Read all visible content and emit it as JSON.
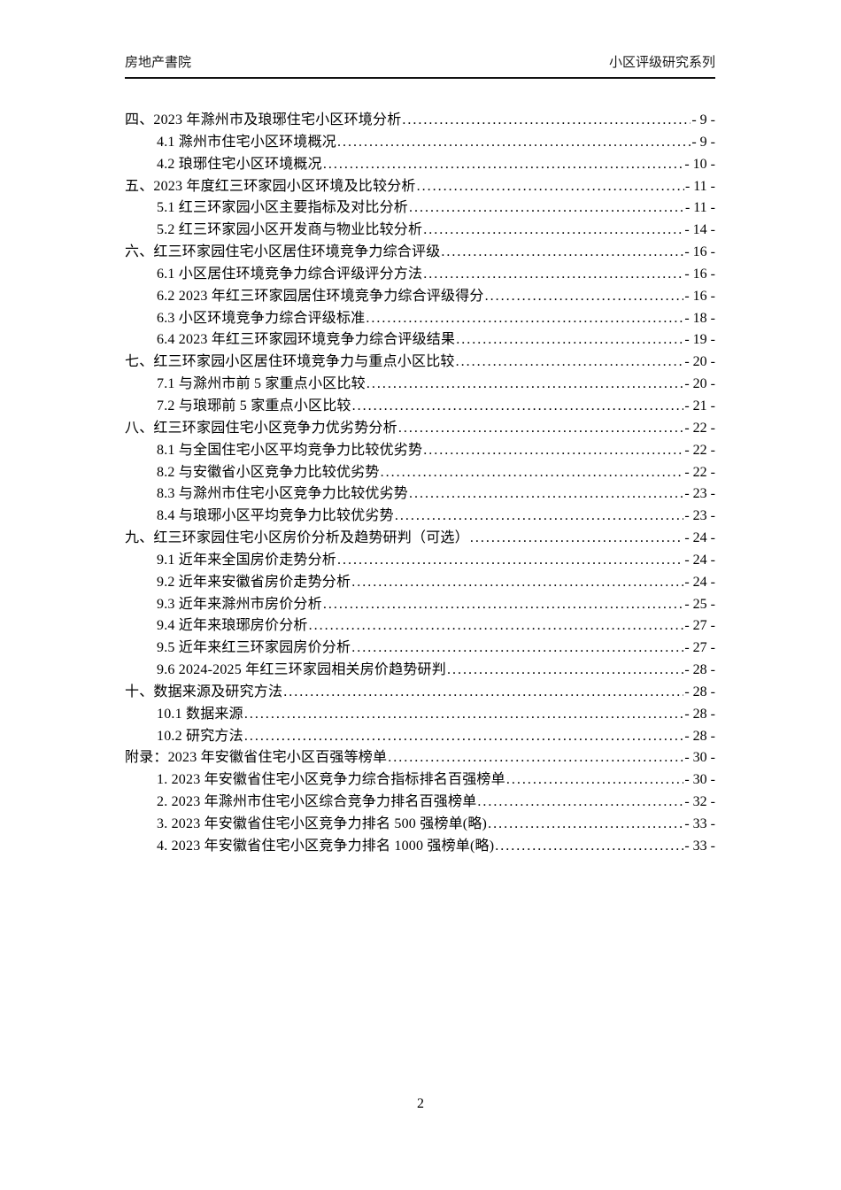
{
  "header": {
    "left_title": "房地产書院",
    "right_title": "小区评级研究系列"
  },
  "footer": {
    "page_number": "2"
  },
  "toc": {
    "entries": [
      {
        "level": 0,
        "title": "四、2023 年滁州市及琅琊住宅小区环境分析",
        "page": "- 9 -"
      },
      {
        "level": 1,
        "title": "4.1 滁州市住宅小区环境概况",
        "page": "- 9 -"
      },
      {
        "level": 1,
        "title": "4.2 琅琊住宅小区环境概况",
        "page": "- 10 -"
      },
      {
        "level": 0,
        "title": "五、2023 年度红三环家园小区环境及比较分析",
        "page": "- 11 -"
      },
      {
        "level": 1,
        "title": "5.1 红三环家园小区主要指标及对比分析",
        "page": "- 11 -"
      },
      {
        "level": 1,
        "title": "5.2 红三环家园小区开发商与物业比较分析",
        "page": "- 14 -"
      },
      {
        "level": 0,
        "title": "六、红三环家园住宅小区居住环境竞争力综合评级",
        "page": "- 16 -"
      },
      {
        "level": 1,
        "title": "6.1 小区居住环境竞争力综合评级评分方法",
        "page": "- 16 -"
      },
      {
        "level": 1,
        "title": "6.2 2023 年红三环家园居住环境竞争力综合评级得分",
        "page": "- 16 -"
      },
      {
        "level": 1,
        "title": "6.3 小区环境竞争力综合评级标准",
        "page": "- 18 -"
      },
      {
        "level": 1,
        "title": "6.4 2023 年红三环家园环境竞争力综合评级结果",
        "page": "- 19 -"
      },
      {
        "level": 0,
        "title": "七、红三环家园小区居住环境竞争力与重点小区比较",
        "page": "- 20 -"
      },
      {
        "level": 1,
        "title": "7.1 与滁州市前 5 家重点小区比较",
        "page": "- 20 -"
      },
      {
        "level": 1,
        "title": "7.2 与琅琊前 5 家重点小区比较",
        "page": "- 21 -"
      },
      {
        "level": 0,
        "title": "八、红三环家园住宅小区竞争力优劣势分析",
        "page": "- 22 -"
      },
      {
        "level": 1,
        "title": "8.1 与全国住宅小区平均竞争力比较优劣势",
        "page": "- 22 -"
      },
      {
        "level": 1,
        "title": "8.2 与安徽省小区竞争力比较优劣势",
        "page": "- 22 -"
      },
      {
        "level": 1,
        "title": "8.3 与滁州市住宅小区竞争力比较优劣势",
        "page": "- 23 -"
      },
      {
        "level": 1,
        "title": "8.4 与琅琊小区平均竞争力比较优劣势",
        "page": "- 23 -"
      },
      {
        "level": 0,
        "title": "九、红三环家园住宅小区房价分析及趋势研判（可选） ",
        "page": "- 24 -"
      },
      {
        "level": 1,
        "title": "9.1 近年来全国房价走势分析",
        "page": "- 24 -"
      },
      {
        "level": 1,
        "title": "9.2 近年来安徽省房价走势分析",
        "page": "- 24 -"
      },
      {
        "level": 1,
        "title": "9.3 近年来滁州市房价分析",
        "page": "- 25 -"
      },
      {
        "level": 1,
        "title": "9.4 近年来琅琊房价分析",
        "page": "- 27 -"
      },
      {
        "level": 1,
        "title": "9.5 近年来红三环家园房价分析",
        "page": "- 27 -"
      },
      {
        "level": 1,
        "title": "9.6 2024-2025 年红三环家园相关房价趋势研判",
        "page": "- 28 -"
      },
      {
        "level": 0,
        "title": "十、数据来源及研究方法",
        "page": "- 28 -"
      },
      {
        "level": 1,
        "title": "10.1 数据来源",
        "page": "- 28 -"
      },
      {
        "level": 1,
        "title": "10.2 研究方法",
        "page": "- 28 -"
      },
      {
        "level": 0,
        "title": "附录：2023 年安徽省住宅小区百强等榜单",
        "page": "- 30 -"
      },
      {
        "level": 1,
        "title": "1. 2023 年安徽省住宅小区竞争力综合指标排名百强榜单",
        "page": "- 30 -"
      },
      {
        "level": 1,
        "title": "2. 2023 年滁州市住宅小区综合竞争力排名百强榜单",
        "page": "- 32 -"
      },
      {
        "level": 1,
        "title": "3. 2023 年安徽省住宅小区竞争力排名 500 强榜单(略)",
        "page": "- 33 -"
      },
      {
        "level": 1,
        "title": "4. 2023 年安徽省住宅小区竞争力排名 1000 强榜单(略)",
        "page": "- 33 -"
      }
    ]
  }
}
